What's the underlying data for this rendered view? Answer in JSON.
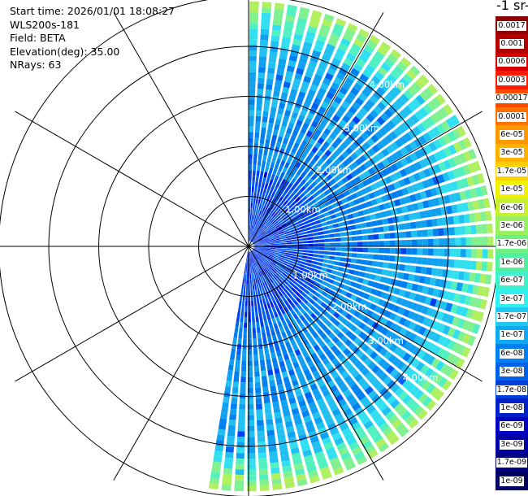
{
  "info": {
    "start_time": "Start time: 2026/01/01 18:08:27",
    "instrument": "WLS200s-181",
    "field": "Field: BETA",
    "elevation": "Elevation(deg): 35.00",
    "nrays": "NRays: 63"
  },
  "chart_data": {
    "type": "polar-ppi",
    "title": "",
    "field": "BETA",
    "units_fragment": "-1 sr-",
    "elevation_deg": 35.0,
    "nrays": 63,
    "azimuth_range_deg": [
      0,
      190
    ],
    "range_rings_km": [
      1.0,
      2.0,
      3.0,
      4.0
    ],
    "ring_labels": [
      "1.00km",
      "2.00km",
      "3.00km",
      "4.00km"
    ],
    "max_range_km": 4.9,
    "grid_spokes_deg": [
      0,
      30,
      60,
      90,
      120,
      150,
      180,
      210,
      240,
      270,
      300,
      330
    ],
    "colorbar_labels": [
      "0.0017",
      "0.001",
      "0.0006",
      "0.0003",
      "0.00017",
      "0.0001",
      "6e-05",
      "3e-05",
      "1.7e-05",
      "1e-05",
      "6e-06",
      "3e-06",
      "1.7e-06",
      "1e-06",
      "6e-07",
      "3e-07",
      "1.7e-07",
      "1e-07",
      "6e-08",
      "3e-08",
      "1.7e-08",
      "1e-08",
      "6e-09",
      "3e-09",
      "1.7e-09",
      "1e-09"
    ],
    "colorbar_colors": [
      "#8b0000",
      "#b00000",
      "#d60000",
      "#ff1a00",
      "#ff4800",
      "#ff7200",
      "#ff9800",
      "#ffb200",
      "#ffd000",
      "#f0f000",
      "#c8f032",
      "#98f060",
      "#70f080",
      "#50f0a0",
      "#40f0c8",
      "#30f0f0",
      "#20c8f0",
      "#10a8f0",
      "#0080f0",
      "#0060e8",
      "#0040d8",
      "#0020c8",
      "#0000c0",
      "#0000a0",
      "#000080",
      "#000060"
    ]
  }
}
